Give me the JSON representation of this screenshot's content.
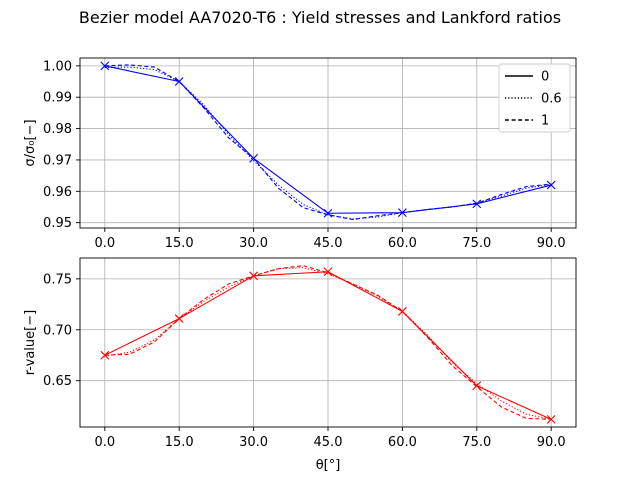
{
  "figure_title": "Bezier model AA7020-T6 : Yield stresses and Lankford ratios",
  "chart_data": [
    {
      "type": "line",
      "panel": "top",
      "ylabel": "σ/σ₀[−]",
      "xlabel": "",
      "xticks": [
        "0.0",
        "15.0",
        "30.0",
        "45.0",
        "60.0",
        "75.0",
        "90.0"
      ],
      "xlim": [
        -5,
        95
      ],
      "ylim": [
        0.9483,
        1.0025
      ],
      "yticks": [
        0.95,
        0.96,
        0.97,
        0.98,
        0.99,
        1.0
      ],
      "ytick_labels": [
        "0.95",
        "0.96",
        "0.97",
        "0.98",
        "0.99",
        "1.00"
      ],
      "grid": true,
      "color": "#0000ff",
      "legend": {
        "position": "top-right",
        "entries": [
          "0",
          "0.6",
          "1"
        ]
      },
      "markers": {
        "x": [
          0,
          15,
          30,
          45,
          60,
          75,
          90
        ],
        "y": [
          1.0,
          0.995,
          0.9705,
          0.953,
          0.9532,
          0.956,
          0.962
        ]
      },
      "series": [
        {
          "name": "0",
          "style": "solid",
          "x": [
            0,
            15,
            30,
            45,
            60,
            75,
            90
          ],
          "y": [
            1.0,
            0.995,
            0.9705,
            0.953,
            0.9532,
            0.956,
            0.962
          ]
        },
        {
          "name": "0.6",
          "style": "dotted",
          "x": [
            0,
            5,
            10,
            15,
            20,
            25,
            30,
            35,
            40,
            45,
            50,
            55,
            60,
            65,
            70,
            75,
            80,
            85,
            90
          ],
          "y": [
            0.9995,
            0.9996,
            0.9988,
            0.995,
            0.9875,
            0.978,
            0.9698,
            0.962,
            0.9558,
            0.9525,
            0.9512,
            0.9518,
            0.9532,
            0.9542,
            0.955,
            0.9562,
            0.9585,
            0.961,
            0.9622
          ]
        },
        {
          "name": "1",
          "style": "dashed",
          "x": [
            0,
            5,
            10,
            15,
            20,
            25,
            30,
            35,
            40,
            45,
            50,
            55,
            60,
            65,
            70,
            75,
            80,
            85,
            90
          ],
          "y": [
            1.0,
            1.0003,
            0.9996,
            0.995,
            0.9865,
            0.977,
            0.9705,
            0.961,
            0.9548,
            0.9525,
            0.951,
            0.9522,
            0.9532,
            0.9542,
            0.955,
            0.9562,
            0.959,
            0.9615,
            0.9623
          ]
        }
      ]
    },
    {
      "type": "line",
      "panel": "bottom",
      "ylabel": "r-value[−]",
      "xlabel": "θ[°]",
      "xticks": [
        "0.0",
        "15.0",
        "30.0",
        "45.0",
        "60.0",
        "75.0",
        "90.0"
      ],
      "xlim": [
        -5,
        95
      ],
      "ylim": [
        0.6045,
        0.7705
      ],
      "yticks": [
        0.65,
        0.7,
        0.75
      ],
      "ytick_labels": [
        "0.65",
        "0.70",
        "0.75"
      ],
      "grid": true,
      "color": "#ff0000",
      "markers": {
        "x": [
          0,
          15,
          30,
          45,
          60,
          75,
          90
        ],
        "y": [
          0.675,
          0.711,
          0.753,
          0.757,
          0.718,
          0.645,
          0.612
        ]
      },
      "series": [
        {
          "name": "0",
          "style": "solid",
          "x": [
            0,
            15,
            30,
            45,
            60,
            75,
            90
          ],
          "y": [
            0.675,
            0.711,
            0.753,
            0.757,
            0.718,
            0.645,
            0.612
          ]
        },
        {
          "name": "0.6",
          "style": "dotted",
          "x": [
            0,
            5,
            10,
            15,
            20,
            25,
            30,
            35,
            40,
            45,
            50,
            55,
            60,
            65,
            70,
            75,
            80,
            85,
            90
          ],
          "y": [
            0.674,
            0.678,
            0.69,
            0.711,
            0.728,
            0.742,
            0.753,
            0.76,
            0.761,
            0.755,
            0.745,
            0.733,
            0.718,
            0.695,
            0.668,
            0.647,
            0.63,
            0.617,
            0.612
          ]
        },
        {
          "name": "1",
          "style": "dashed",
          "x": [
            0,
            5,
            10,
            15,
            20,
            25,
            30,
            35,
            40,
            45,
            50,
            55,
            60,
            65,
            70,
            75,
            80,
            85,
            90
          ],
          "y": [
            0.675,
            0.676,
            0.688,
            0.711,
            0.73,
            0.745,
            0.753,
            0.76,
            0.763,
            0.756,
            0.745,
            0.734,
            0.718,
            0.693,
            0.665,
            0.644,
            0.624,
            0.613,
            0.612
          ]
        }
      ]
    }
  ]
}
